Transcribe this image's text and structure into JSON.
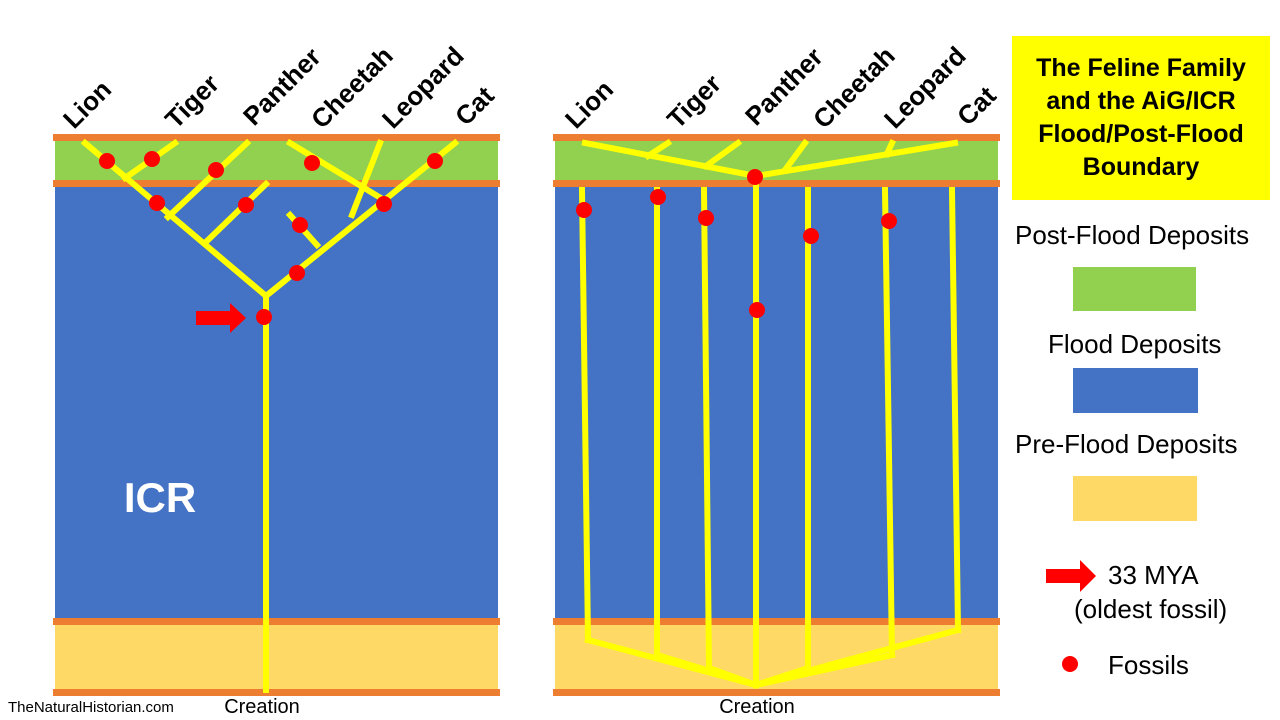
{
  "title": "The Feline Family and the AiG/ICR Flood/Post-Flood Boundary",
  "species_left": [
    "Lion",
    "Tiger",
    "Panther",
    "Cheetah",
    "Leopard",
    "Cat"
  ],
  "species_right": [
    "Lion",
    "Tiger",
    "Panther",
    "Cheetah",
    "Leopard",
    "Cat"
  ],
  "panel_label_left": "ICR",
  "creation_label_left": "Creation",
  "creation_label_right": "Creation",
  "credit": "TheNaturalHistorian.com",
  "legend": {
    "post_flood": {
      "label": "Post-Flood Deposits",
      "color": "#92d050"
    },
    "flood": {
      "label": "Flood Deposits",
      "color": "#4472c4"
    },
    "pre_flood": {
      "label": "Pre-Flood Deposits",
      "color": "#ffd966"
    },
    "arrow_line1": "33 MYA",
    "arrow_line2": "(oldest fossil)",
    "fossils": "Fossils"
  },
  "colors": {
    "boundary": "#ed7d31",
    "lineage": "#ffff00",
    "fossil": "#ff0000",
    "arrow": "#ff0000"
  }
}
